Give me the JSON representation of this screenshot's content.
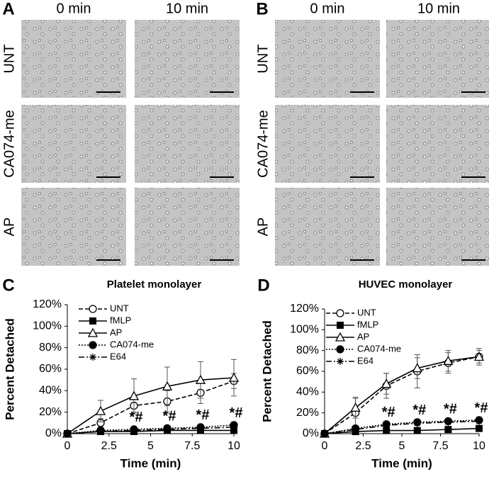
{
  "micrographs": [
    {
      "panel": "A",
      "columns": [
        "0 min",
        "10 min"
      ],
      "rows": [
        "UNT",
        "CA074-me",
        "AP"
      ]
    },
    {
      "panel": "B",
      "columns": [
        "0 min",
        "10 min"
      ],
      "rows": [
        "UNT",
        "CA074-me",
        "AP"
      ]
    }
  ],
  "chart_data": [
    {
      "type": "line",
      "panel": "C",
      "title": "Platelet monolayer",
      "x_label": "Time (min)",
      "y_label": "Percent Detached",
      "x": [
        0,
        2,
        4,
        6,
        8,
        10
      ],
      "xlim": [
        0,
        10
      ],
      "xticks": [
        0,
        2.5,
        5,
        7.5,
        10
      ],
      "ylim": [
        0,
        120
      ],
      "yticks": [
        {
          "value": 0,
          "label": "0%"
        },
        {
          "value": 20,
          "label": "20%"
        },
        {
          "value": 40,
          "label": "40%"
        },
        {
          "value": 60,
          "label": "60%"
        },
        {
          "value": 80,
          "label": "80%"
        },
        {
          "value": 100,
          "label": "100%"
        },
        {
          "value": 120,
          "label": "120%"
        }
      ],
      "series": [
        {
          "name": "UNT",
          "color": "#000000",
          "dash": "6,3",
          "marker": "circle-open",
          "values": [
            0,
            10,
            26,
            30,
            38,
            49
          ],
          "errors": [
            0,
            4,
            6,
            10,
            10,
            7
          ]
        },
        {
          "name": "fMLP",
          "color": "#000000",
          "dash": "none",
          "marker": "square",
          "values": [
            0,
            2,
            2,
            3,
            3,
            3
          ]
        },
        {
          "name": "AP",
          "color": "#000000",
          "dash": "none",
          "marker": "triangle-open",
          "values": [
            0,
            21,
            35,
            44,
            50,
            52
          ],
          "errors": [
            0,
            10,
            16,
            18,
            17,
            17
          ]
        },
        {
          "name": "CA074-me",
          "color": "#000000",
          "dash": "2,2",
          "marker": "circle",
          "values": [
            0,
            3,
            4,
            5,
            6,
            8
          ]
        },
        {
          "name": "E64",
          "color": "#000000",
          "dash": "8,3,2,3",
          "marker": "star",
          "values": [
            0,
            2,
            3,
            4,
            5,
            6
          ]
        }
      ],
      "annotations": [
        {
          "x": 4,
          "text": "*#"
        },
        {
          "x": 6,
          "text": "*#"
        },
        {
          "x": 8,
          "text": "*#"
        },
        {
          "x": 10,
          "text": "*#"
        }
      ]
    },
    {
      "type": "line",
      "panel": "D",
      "title": "HUVEC monolayer",
      "x_label": "Time (min)",
      "y_label": "Percent Detached",
      "x": [
        0,
        2,
        4,
        6,
        8,
        10
      ],
      "xlim": [
        0,
        10
      ],
      "xticks": [
        0,
        2.5,
        5,
        7.5,
        10
      ],
      "ylim": [
        0,
        120
      ],
      "yticks": [
        {
          "value": 0,
          "label": "0%"
        },
        {
          "value": 20,
          "label": "20%"
        },
        {
          "value": 40,
          "label": "40%"
        },
        {
          "value": 60,
          "label": "60%"
        },
        {
          "value": 80,
          "label": "80%"
        },
        {
          "value": 100,
          "label": "100%"
        },
        {
          "value": 120,
          "label": "120%"
        }
      ],
      "series": [
        {
          "name": "UNT",
          "color": "#000000",
          "dash": "6,3",
          "marker": "circle-open",
          "values": [
            0,
            20,
            46,
            60,
            68,
            74
          ],
          "errors": [
            0,
            14,
            12,
            16,
            10,
            6
          ]
        },
        {
          "name": "fMLP",
          "color": "#000000",
          "dash": "none",
          "marker": "square",
          "values": [
            0,
            2,
            3,
            3,
            4,
            5
          ]
        },
        {
          "name": "AP",
          "color": "#000000",
          "dash": "none",
          "marker": "triangle-open",
          "values": [
            0,
            25,
            48,
            63,
            70,
            74
          ],
          "errors": [
            0,
            10,
            10,
            10,
            10,
            8
          ]
        },
        {
          "name": "CA074-me",
          "color": "#000000",
          "dash": "2,2",
          "marker": "circle",
          "values": [
            0,
            5,
            9,
            11,
            12,
            13
          ]
        },
        {
          "name": "E64",
          "color": "#000000",
          "dash": "8,3,2,3",
          "marker": "star",
          "values": [
            0,
            4,
            8,
            10,
            11,
            12
          ]
        }
      ],
      "annotations": [
        {
          "x": 4,
          "text": "*#"
        },
        {
          "x": 6,
          "text": "*#"
        },
        {
          "x": 8,
          "text": "*#"
        },
        {
          "x": 10,
          "text": "*#"
        }
      ]
    }
  ]
}
